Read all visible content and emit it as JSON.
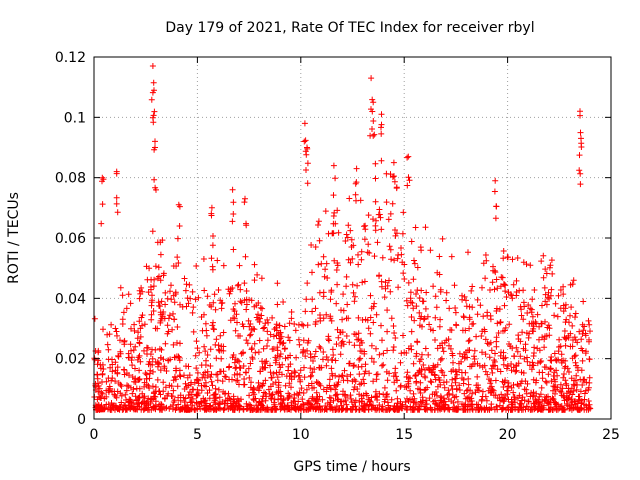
{
  "chart_data": {
    "type": "scatter",
    "title": "Day 179 of 2021, Rate Of TEC Index for receiver rbyl",
    "xlabel": "GPS time / hours",
    "ylabel": "ROTI / TECUs",
    "xlim": [
      0,
      25
    ],
    "ylim": [
      0,
      0.12
    ],
    "xticks": [
      0,
      5,
      10,
      15,
      20,
      25
    ],
    "xtick_labels": [
      "0",
      "5",
      "10",
      "15",
      "20",
      "25"
    ],
    "yticks": [
      0,
      0.02,
      0.04,
      0.06,
      0.08,
      0.1,
      0.12
    ],
    "ytick_labels": [
      "0",
      "0.02",
      "0.04",
      "0.06",
      "0.08",
      "0.1",
      "0.12"
    ],
    "grid": true,
    "marker": "+",
    "color": "#ff0000",
    "data_x_range": [
      0,
      24
    ],
    "series": [
      {
        "name": "ROTI",
        "description": "dense scatter of ROTI values vs time",
        "envelope_hours": [
          0,
          1,
          2,
          3,
          4,
          5,
          6,
          7,
          8,
          9,
          10,
          10.5,
          11,
          12,
          13,
          13.5,
          14,
          15,
          16,
          17,
          18,
          19,
          19.5,
          20,
          21,
          22,
          23,
          23.5,
          24
        ],
        "typical_max_roti": [
          0.02,
          0.03,
          0.04,
          0.05,
          0.04,
          0.04,
          0.04,
          0.045,
          0.035,
          0.03,
          0.03,
          0.05,
          0.06,
          0.06,
          0.06,
          0.07,
          0.07,
          0.06,
          0.05,
          0.045,
          0.04,
          0.045,
          0.05,
          0.04,
          0.04,
          0.04,
          0.035,
          0.035,
          0.03
        ],
        "peaks": [
          {
            "x": 0.4,
            "y": 0.08
          },
          {
            "x": 1.1,
            "y": 0.082
          },
          {
            "x": 2.85,
            "y": 0.117
          },
          {
            "x": 2.9,
            "y": 0.109
          },
          {
            "x": 2.95,
            "y": 0.09
          },
          {
            "x": 4.1,
            "y": 0.071
          },
          {
            "x": 5.7,
            "y": 0.07
          },
          {
            "x": 6.7,
            "y": 0.076
          },
          {
            "x": 7.3,
            "y": 0.073
          },
          {
            "x": 10.2,
            "y": 0.098
          },
          {
            "x": 10.3,
            "y": 0.09
          },
          {
            "x": 11.6,
            "y": 0.084
          },
          {
            "x": 12.7,
            "y": 0.083
          },
          {
            "x": 13.4,
            "y": 0.113
          },
          {
            "x": 13.5,
            "y": 0.105
          },
          {
            "x": 13.9,
            "y": 0.101
          },
          {
            "x": 14.5,
            "y": 0.085
          },
          {
            "x": 15.2,
            "y": 0.087
          },
          {
            "x": 19.4,
            "y": 0.079
          },
          {
            "x": 23.5,
            "y": 0.102
          },
          {
            "x": 23.55,
            "y": 0.093
          }
        ]
      }
    ]
  }
}
